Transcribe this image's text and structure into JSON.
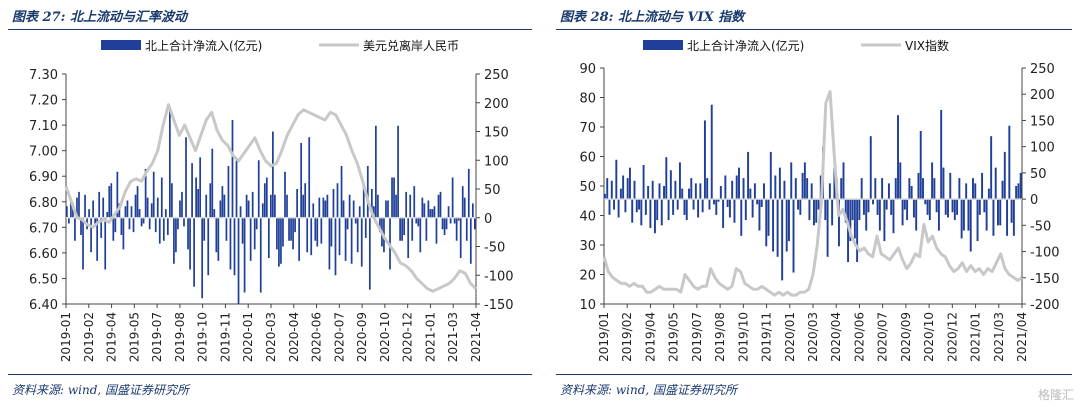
{
  "chart_data": [
    {
      "type": "bar+line",
      "title": "图表 27:  北上流动与汇率波动",
      "source": "资料来源: wind, 国盛证券研究所",
      "legend": [
        {
          "name": "北上合计净流入(亿元)",
          "kind": "bar",
          "color": "#1f3f99"
        },
        {
          "name": "美元兑离岸人民币",
          "kind": "line",
          "color": "#c8c8c8"
        }
      ],
      "legend_placement": "top",
      "left_axis": {
        "ylim": [
          6.4,
          7.3
        ],
        "ticks": [
          "7.30",
          "7.20",
          "7.10",
          "7.00",
          "6.90",
          "6.80",
          "6.70",
          "6.60",
          "6.50",
          "6.40"
        ]
      },
      "right_axis": {
        "ylim": [
          -150,
          250
        ],
        "ticks": [
          "250",
          "200",
          "150",
          "100",
          "50",
          "0",
          "-50",
          "-100",
          "-150"
        ]
      },
      "x_ticks": [
        "2019-01",
        "2019-02",
        "2019-04",
        "2019-05",
        "2019-07",
        "2019-08",
        "2019-10",
        "2019-11",
        "2020-01",
        "2020-03",
        "2020-04",
        "2020-06",
        "2020-07",
        "2020-09",
        "2020-10",
        "2020-12",
        "2021-01",
        "2021-03",
        "2021-04"
      ],
      "line_series": {
        "name": "美元兑离岸人民币",
        "values": [
          6.86,
          6.8,
          6.74,
          6.73,
          6.71,
          6.7,
          6.72,
          6.73,
          6.72,
          6.75,
          6.78,
          6.84,
          6.88,
          6.89,
          6.88,
          6.92,
          6.95,
          7.0,
          7.1,
          7.18,
          7.12,
          7.06,
          7.1,
          7.05,
          7.0,
          7.06,
          7.12,
          7.15,
          7.08,
          7.04,
          7.02,
          6.98,
          6.96,
          6.99,
          7.02,
          7.05,
          7.0,
          6.96,
          6.94,
          6.95,
          7.0,
          7.06,
          7.1,
          7.14,
          7.16,
          7.15,
          7.14,
          7.13,
          7.12,
          7.15,
          7.14,
          7.1,
          7.06,
          7.0,
          6.95,
          6.88,
          6.8,
          6.74,
          6.7,
          6.66,
          6.63,
          6.6,
          6.56,
          6.55,
          6.53,
          6.5,
          6.48,
          6.46,
          6.45,
          6.46,
          6.47,
          6.48,
          6.5,
          6.53,
          6.52,
          6.48,
          6.46
        ]
      },
      "bar_series": {
        "name": "北上合计净流入(亿元)",
        "values": [
          20,
          -10,
          30,
          25,
          -40,
          35,
          45,
          -30,
          -90,
          40,
          -20,
          15,
          -60,
          30,
          -15,
          -75,
          45,
          -35,
          35,
          -90,
          10,
          55,
          60,
          -40,
          -25,
          80,
          25,
          -30,
          -55,
          20,
          30,
          -20,
          20,
          -25,
          40,
          55,
          15,
          -15,
          -10,
          85,
          35,
          -20,
          25,
          80,
          -25,
          35,
          -45,
          70,
          -40,
          15,
          -30,
          190,
          60,
          -80,
          -60,
          -20,
          30,
          45,
          -15,
          140,
          -55,
          -90,
          95,
          -120,
          70,
          50,
          105,
          -140,
          -40,
          40,
          -100,
          60,
          120,
          15,
          -60,
          -75,
          30,
          55,
          40,
          -40,
          90,
          -90,
          170,
          -100,
          100,
          -150,
          20,
          -45,
          -130,
          40,
          30,
          -75,
          45,
          -55,
          -20,
          100,
          -130,
          25,
          60,
          70,
          -70,
          40,
          150,
          40,
          -55,
          -85,
          -80,
          -50,
          80,
          40,
          -40,
          -40,
          -55,
          -25,
          50,
          -75,
          130,
          40,
          60,
          -60,
          140,
          -65,
          25,
          -40,
          -50,
          35,
          -45,
          35,
          30,
          40,
          -90,
          -50,
          50,
          -100,
          60,
          -65,
          90,
          30,
          -75,
          -20,
          40,
          -80,
          30,
          -10,
          -60,
          20,
          -85,
          55,
          -35,
          90,
          -125,
          50,
          20,
          160,
          40,
          -25,
          -50,
          -60,
          30,
          30,
          -90,
          70,
          70,
          40,
          160,
          -40,
          -40,
          -30,
          45,
          -70,
          40,
          -40,
          55,
          -10,
          -15,
          -60,
          35,
          25,
          -40,
          30,
          15,
          15,
          20,
          -45,
          40,
          45,
          -20,
          -30,
          -20,
          20,
          -10,
          70,
          -10,
          -40,
          -5,
          -70,
          55,
          35,
          -40,
          85,
          -80,
          25,
          -20
        ]
      }
    },
    {
      "type": "bar+line",
      "title": "图表 28:  北上流动与 VIX 指数",
      "source": "资料来源: wind, 国盛证券研究所",
      "legend": [
        {
          "name": "北上合计净流入(亿元)",
          "kind": "bar",
          "color": "#1f3f99"
        },
        {
          "name": "VIX指数",
          "kind": "line",
          "color": "#c8c8c8"
        }
      ],
      "legend_placement": "top",
      "left_axis": {
        "ylim": [
          10,
          90
        ],
        "ticks": [
          "90",
          "80",
          "70",
          "60",
          "50",
          "40",
          "30",
          "20",
          "10"
        ]
      },
      "right_axis": {
        "ylim": [
          -200,
          250
        ],
        "ticks": [
          "250",
          "200",
          "150",
          "100",
          "50",
          "0",
          "-50",
          "-100",
          "-150",
          "-200"
        ]
      },
      "x_ticks": [
        "2019/01",
        "2019/02",
        "2019/04",
        "2019/05",
        "2019/07",
        "2019/08",
        "2019/10",
        "2019/11",
        "2020/01",
        "2020/03",
        "2020/04",
        "2020/06",
        "2020/07",
        "2020/09",
        "2020/10",
        "2020/12",
        "2021/01",
        "2021/03",
        "2021/04"
      ],
      "line_series": {
        "name": "VIX指数",
        "values": [
          26,
          21,
          19,
          18,
          17,
          17,
          16,
          17,
          16,
          16,
          14,
          14,
          15,
          16,
          15,
          15,
          15,
          15,
          14,
          20,
          18,
          16,
          15,
          16,
          16,
          22,
          19,
          17,
          16,
          15,
          16,
          22,
          21,
          17,
          16,
          15,
          15,
          16,
          15,
          14,
          13,
          14,
          13,
          14,
          13,
          13,
          14,
          14,
          15,
          20,
          30,
          45,
          78,
          82,
          60,
          40,
          42,
          38,
          33,
          30,
          28,
          29,
          27,
          26,
          33,
          27,
          26,
          25,
          27,
          29,
          25,
          22,
          24,
          27,
          26,
          37,
          31,
          33,
          29,
          27,
          26,
          23,
          21,
          22,
          24,
          21,
          23,
          21,
          22,
          20,
          22,
          21,
          24,
          27,
          22,
          20,
          19,
          18,
          19
        ]
      },
      "bar_series": {
        "name": "北上合计净流入(亿元)",
        "values": [
          10,
          40,
          -30,
          35,
          -20,
          75,
          -35,
          20,
          45,
          -25,
          40,
          60,
          -45,
          35,
          -25,
          -20,
          -50,
          65,
          -30,
          25,
          -55,
          35,
          -65,
          -40,
          30,
          -50,
          25,
          80,
          -40,
          55,
          -30,
          35,
          -20,
          70,
          20,
          -30,
          -40,
          20,
          40,
          -20,
          30,
          -35,
          30,
          -25,
          150,
          40,
          -20,
          180,
          -10,
          -30,
          -5,
          25,
          -55,
          45,
          -15,
          -35,
          35,
          -45,
          45,
          60,
          -70,
          40,
          -40,
          90,
          20,
          -35,
          30,
          -10,
          -60,
          -15,
          30,
          -90,
          -70,
          90,
          -100,
          45,
          -110,
          60,
          -155,
          35,
          -100,
          -80,
          70,
          -140,
          40,
          -20,
          -30,
          50,
          70,
          40,
          -40,
          30,
          -50,
          -45,
          -20,
          45,
          100,
          -40,
          -110,
          30,
          -50,
          60,
          40,
          -90,
          40,
          70,
          -45,
          -120,
          -80,
          -40,
          -75,
          -120,
          -40,
          40,
          -30,
          -60,
          -25,
          120,
          -10,
          40,
          -30,
          -60,
          40,
          -80,
          -20,
          30,
          -30,
          -65,
          40,
          160,
          70,
          -50,
          -20,
          -40,
          40,
          25,
          -35,
          -60,
          50,
          130,
          40,
          -10,
          -30,
          -40,
          70,
          40,
          -25,
          -60,
          170,
          60,
          -30,
          -35,
          50,
          -25,
          -40,
          -30,
          40,
          -75,
          -60,
          30,
          -60,
          -100,
          40,
          30,
          -80,
          -30,
          50,
          -25,
          -60,
          20,
          120,
          -70,
          60,
          -50,
          -50,
          35,
          90,
          -70,
          140,
          -45,
          -70,
          25,
          30,
          50
        ]
      }
    }
  ],
  "watermark": "格隆汇"
}
